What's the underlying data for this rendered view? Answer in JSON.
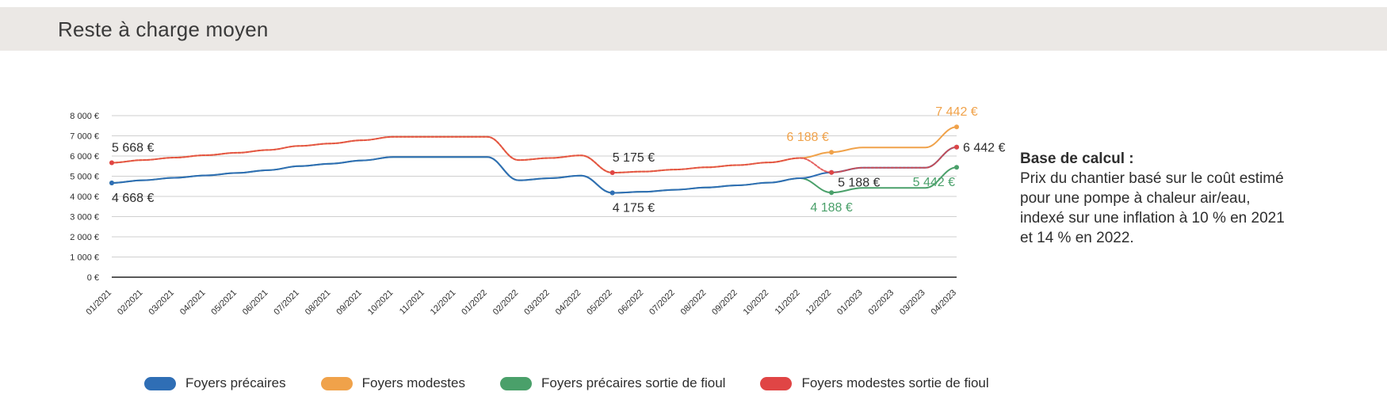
{
  "header": {
    "title": "Reste à charge moyen"
  },
  "note": {
    "title": "Base de calcul :",
    "lines": [
      "Prix du chantier basé sur le coût estimé",
      "pour une pompe à chaleur air/eau,",
      "indexé sur une inflation à 10 % en 2021",
      "et 14 % en 2022."
    ]
  },
  "chart_data": {
    "type": "line",
    "title": "Reste à charge moyen",
    "xlabel": "",
    "ylabel": "",
    "ylim": [
      0,
      8000
    ],
    "grid": true,
    "legend_position": "bottom",
    "y_ticks": [
      "0 €",
      "1 000 €",
      "2 000 €",
      "3 000 €",
      "4 000 €",
      "5 000 €",
      "6 000 €",
      "7 000 €",
      "8 000 €"
    ],
    "y_tick_values": [
      0,
      1000,
      2000,
      3000,
      4000,
      5000,
      6000,
      7000,
      8000
    ],
    "categories": [
      "01/2021",
      "02/2021",
      "03/2021",
      "04/2021",
      "05/2021",
      "06/2021",
      "07/2021",
      "08/2021",
      "09/2021",
      "10/2021",
      "11/2021",
      "12/2021",
      "01/2022",
      "02/2022",
      "03/2022",
      "04/2022",
      "05/2022",
      "06/2022",
      "07/2022",
      "08/2022",
      "09/2022",
      "10/2022",
      "11/2022",
      "12/2022",
      "01/2023",
      "02/2023",
      "03/2023",
      "04/2023"
    ],
    "series": [
      {
        "name": "Foyers précaires",
        "color": "#2f6eb5",
        "values": [
          4668,
          4800,
          4920,
          5040,
          5160,
          5300,
          5500,
          5620,
          5780,
          5950,
          5950,
          5950,
          5950,
          4800,
          4900,
          5030,
          4175,
          4230,
          4330,
          4440,
          4550,
          4680,
          4900,
          5188,
          5420,
          5420,
          5420,
          6442
        ]
      },
      {
        "name": "Foyers modestes",
        "color": "#f0a24a",
        "values": [
          5668,
          5800,
          5920,
          6040,
          6160,
          6300,
          6500,
          6620,
          6780,
          6950,
          6950,
          6950,
          6950,
          5800,
          5900,
          6030,
          5175,
          5230,
          5330,
          5440,
          5550,
          5680,
          5900,
          6188,
          6420,
          6420,
          6420,
          7442
        ]
      },
      {
        "name": "Foyers précaires sortie de fioul",
        "color": "#4aa06a",
        "values": [
          4668,
          4800,
          4920,
          5040,
          5160,
          5300,
          5500,
          5620,
          5780,
          5950,
          5950,
          5950,
          5950,
          4800,
          4900,
          5030,
          4175,
          4230,
          4330,
          4440,
          4550,
          4680,
          4900,
          4188,
          4420,
          4420,
          4420,
          5442
        ]
      },
      {
        "name": "Foyers modestes sortie de fioul",
        "color": "#e04545",
        "values": [
          5668,
          5800,
          5920,
          6040,
          6160,
          6300,
          6500,
          6620,
          6780,
          6950,
          6950,
          6950,
          6950,
          5800,
          5900,
          6030,
          5175,
          5230,
          5330,
          5440,
          5550,
          5680,
          5900,
          5188,
          5420,
          5420,
          5420,
          6442
        ]
      }
    ],
    "annotations": [
      {
        "label": "5 668 €",
        "category": "01/2021",
        "value": 5668,
        "color": "#2e2e2e",
        "placement": "above"
      },
      {
        "label": "4 668 €",
        "category": "01/2021",
        "value": 4668,
        "color": "#2e2e2e",
        "placement": "below"
      },
      {
        "label": "5 175 €",
        "category": "05/2022",
        "value": 5175,
        "color": "#2e2e2e",
        "placement": "above"
      },
      {
        "label": "4 175 €",
        "category": "05/2022",
        "value": 4175,
        "color": "#2e2e2e",
        "placement": "below"
      },
      {
        "label": "6 188 €",
        "category": "12/2022",
        "value": 6188,
        "color": "#f0a24a",
        "placement": "above-left"
      },
      {
        "label": "5 188 €",
        "category": "12/2022",
        "value": 5188,
        "color": "#2e2e2e",
        "placement": "below-right"
      },
      {
        "label": "4 188 €",
        "category": "12/2022",
        "value": 4188,
        "color": "#4aa06a",
        "placement": "below"
      },
      {
        "label": "7 442 €",
        "category": "04/2023",
        "value": 7442,
        "color": "#f0a24a",
        "placement": "above"
      },
      {
        "label": "6 442 €",
        "category": "04/2023",
        "value": 6442,
        "color": "#2e2e2e",
        "placement": "right"
      },
      {
        "label": "5 442 €",
        "category": "04/2023",
        "value": 5442,
        "color": "#4aa06a",
        "placement": "below-left"
      }
    ]
  }
}
